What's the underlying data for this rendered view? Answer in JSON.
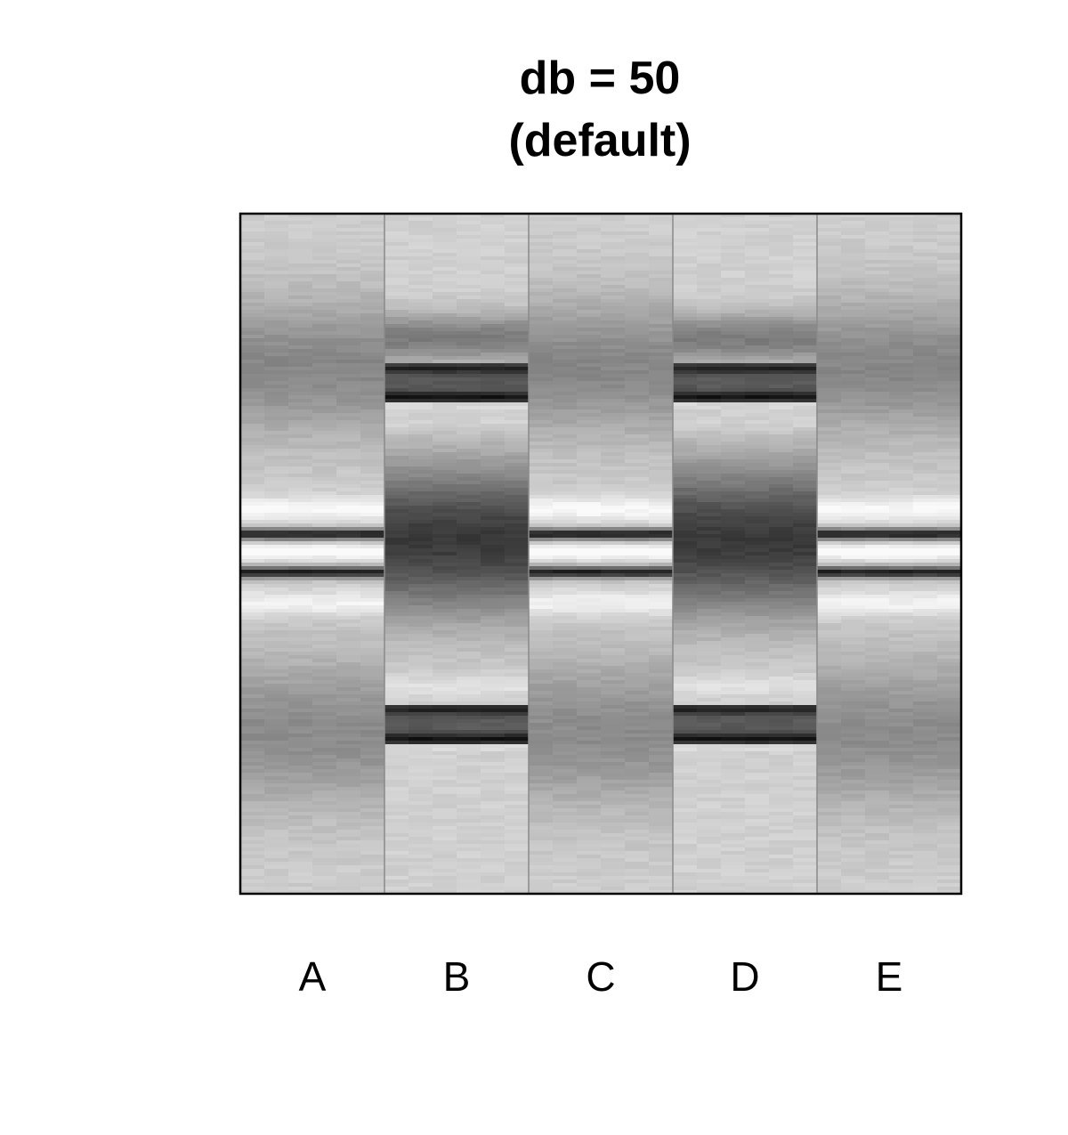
{
  "title": {
    "line1": "db = 50",
    "line2": "(default)"
  },
  "chart_data": {
    "type": "heatmap",
    "title": "db = 50\n(default)",
    "xlabel": "",
    "ylabel": "",
    "lanes": [
      "A",
      "B",
      "C",
      "D",
      "E"
    ],
    "colormap": "grayscale",
    "lane_profiles": {
      "A": "broad dark bands near top and bottom, pair of sharp dark bands at center with bright halo",
      "B": "two sharp dark double bands near top and bottom, broad dark band at center",
      "C": "broad dark bands near top and bottom, pair of sharp dark bands at center with bright halo",
      "D": "two sharp dark double bands near top and bottom, broad dark band at center",
      "E": "broad dark bands near top and bottom, pair of sharp dark bands at center with bright halo"
    }
  }
}
